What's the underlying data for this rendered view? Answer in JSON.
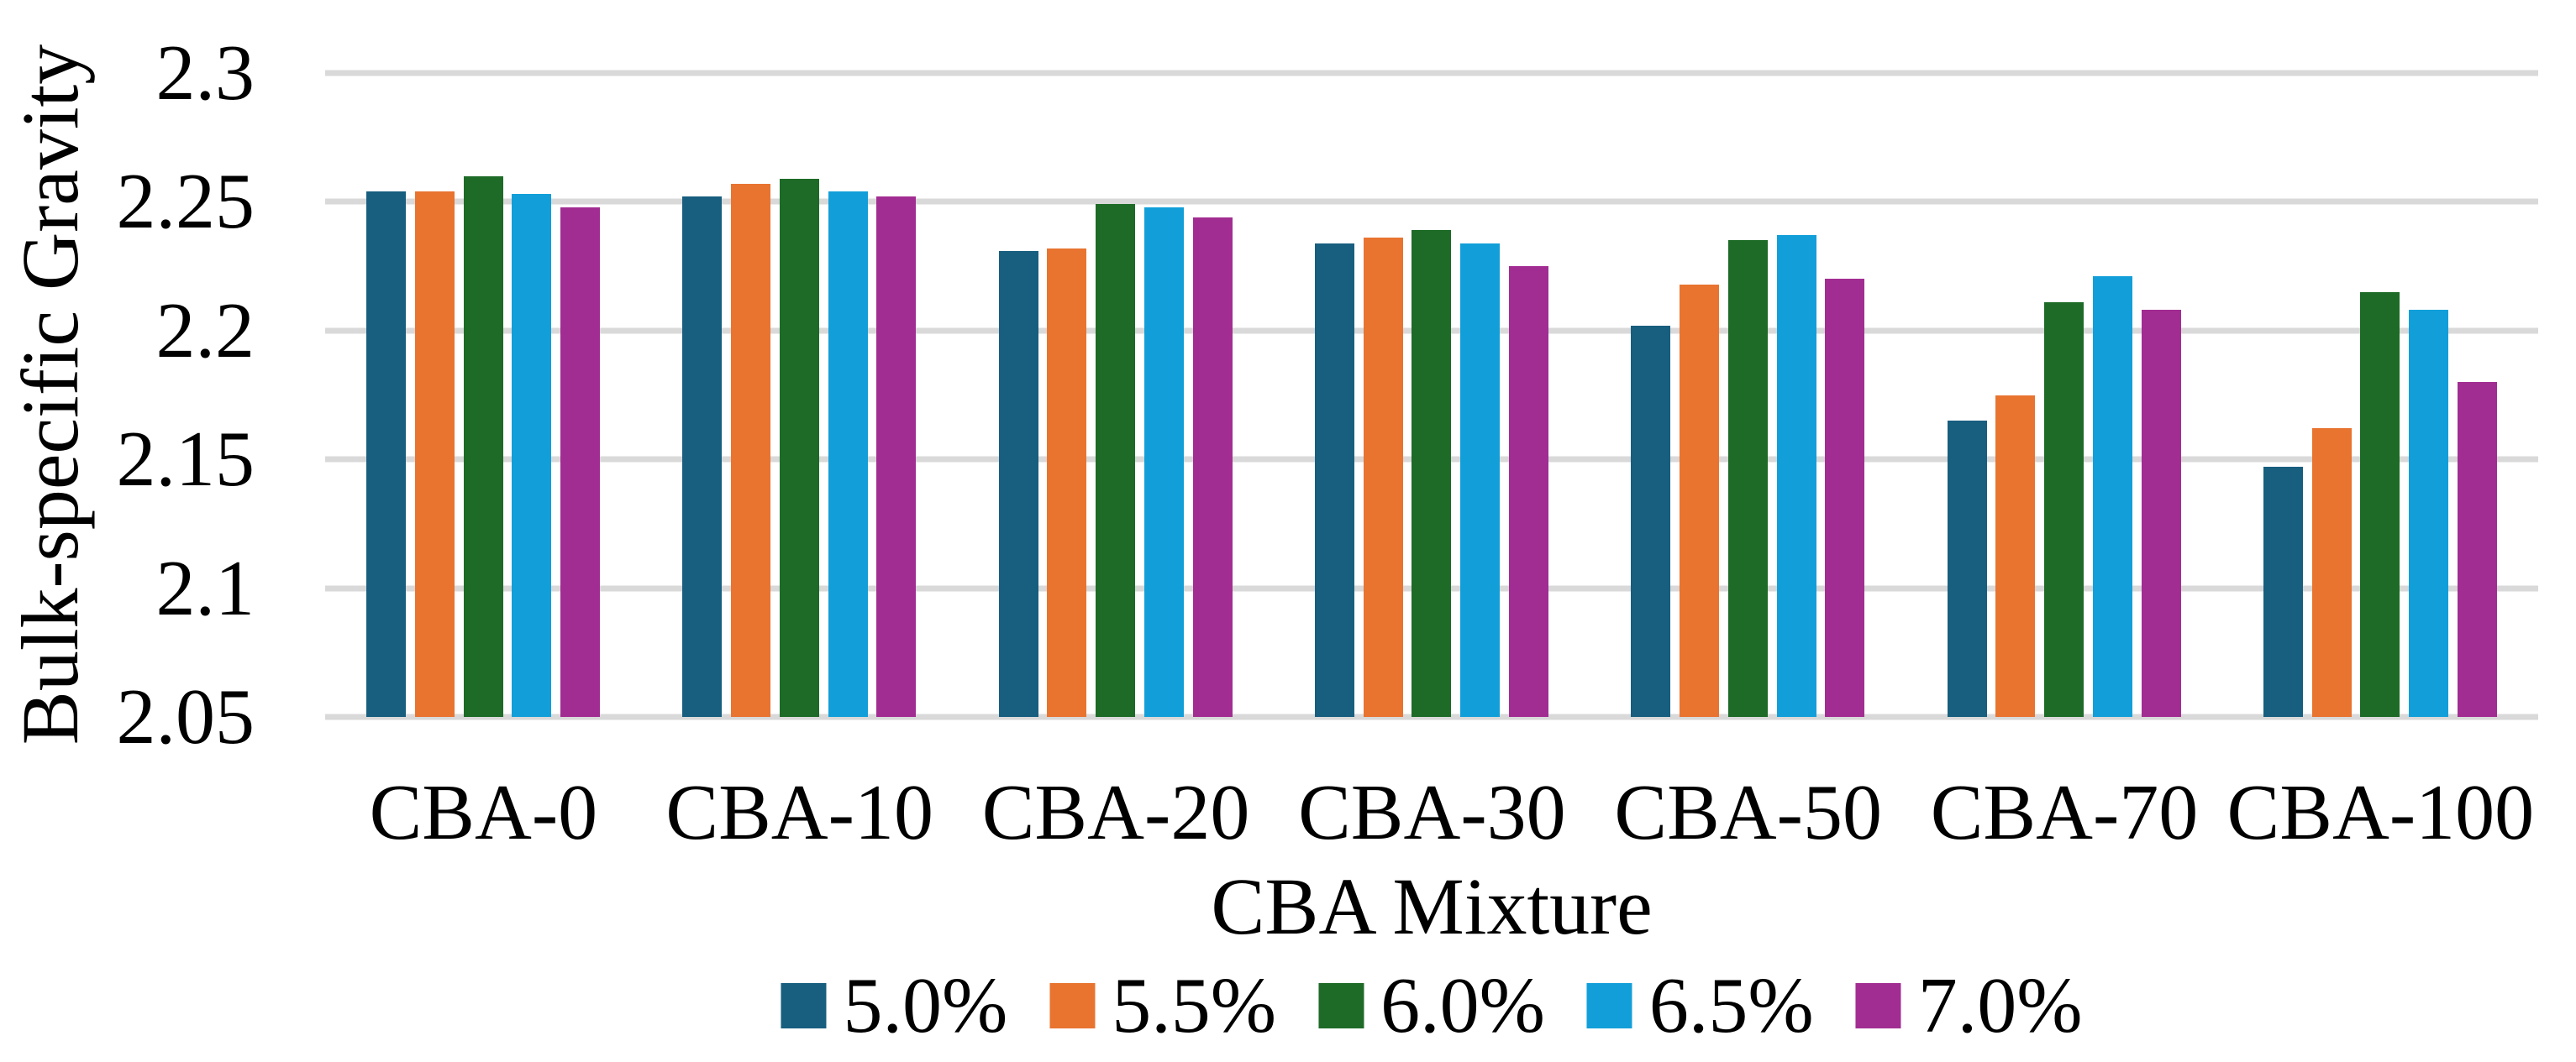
{
  "chart_data": {
    "type": "bar",
    "title": "",
    "xlabel": "CBA Mixture",
    "ylabel": "Bulk-specific Gravity",
    "categories": [
      "CBA-0",
      "CBA-10",
      "CBA-20",
      "CBA-30",
      "CBA-50",
      "CBA-70",
      "CBA-100"
    ],
    "series": [
      {
        "name": "5.0%",
        "color": "#175E7F",
        "values": [
          2.254,
          2.252,
          2.231,
          2.234,
          2.202,
          2.165,
          2.147
        ]
      },
      {
        "name": "5.5%",
        "color": "#E87430",
        "values": [
          2.254,
          2.257,
          2.232,
          2.236,
          2.218,
          2.175,
          2.162
        ]
      },
      {
        "name": "6.0%",
        "color": "#1D6B27",
        "values": [
          2.26,
          2.259,
          2.249,
          2.239,
          2.235,
          2.211,
          2.215
        ]
      },
      {
        "name": "6.5%",
        "color": "#129FD9",
        "values": [
          2.253,
          2.254,
          2.248,
          2.234,
          2.237,
          2.221,
          2.208
        ]
      },
      {
        "name": "7.0%",
        "color": "#A22D92",
        "values": [
          2.248,
          2.252,
          2.244,
          2.225,
          2.22,
          2.208,
          2.18
        ]
      }
    ],
    "ylim": [
      2.05,
      2.3
    ],
    "yticks": [
      {
        "value": 2.3,
        "label": "2.3"
      },
      {
        "value": 2.25,
        "label": "2.25"
      },
      {
        "value": 2.2,
        "label": "2.2"
      },
      {
        "value": 2.15,
        "label": "2.15"
      },
      {
        "value": 2.1,
        "label": "2.1"
      },
      {
        "value": 2.05,
        "label": "2.05"
      }
    ],
    "grid": true,
    "gridline_color": "#D9D9D9",
    "legend_position": "bottom"
  }
}
